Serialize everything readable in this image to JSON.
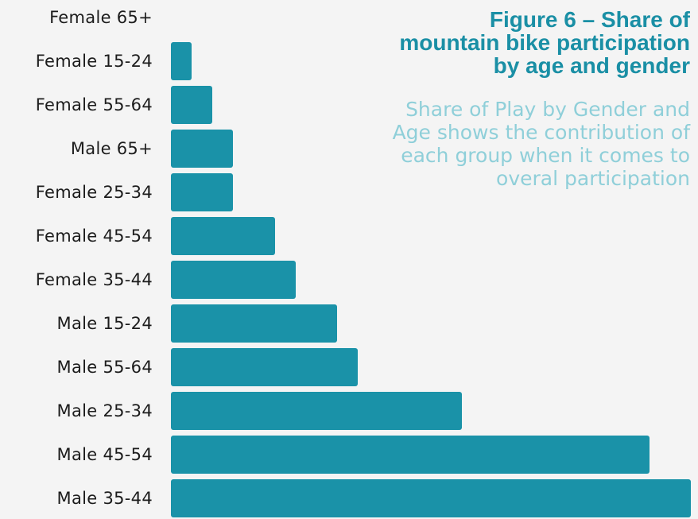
{
  "chart_data": {
    "type": "bar",
    "orientation": "horizontal",
    "title": "Figure 6 – Share of mountain bike participation by age and gender",
    "subtitle": "Share of Play by Gender and Age shows the contribution of each group when it comes to overal participation",
    "categories": [
      "Female 65+",
      "Female 15-24",
      "Female 55-64",
      "Male 65+",
      "Female 25-34",
      "Female 45-54",
      "Female 35-44",
      "Male 15-24",
      "Male 55-64",
      "Male 25-34",
      "Male 45-54",
      "Male 35-44"
    ],
    "values": [
      0,
      1,
      2,
      3,
      3,
      5,
      6,
      8,
      9,
      14,
      23,
      25
    ],
    "xlim": [
      0,
      25
    ],
    "grid": false,
    "legend": "none",
    "bar_color": "#1a92a8",
    "title_color": "#1a8fa5",
    "subtitle_color": "#8fcfd9"
  }
}
